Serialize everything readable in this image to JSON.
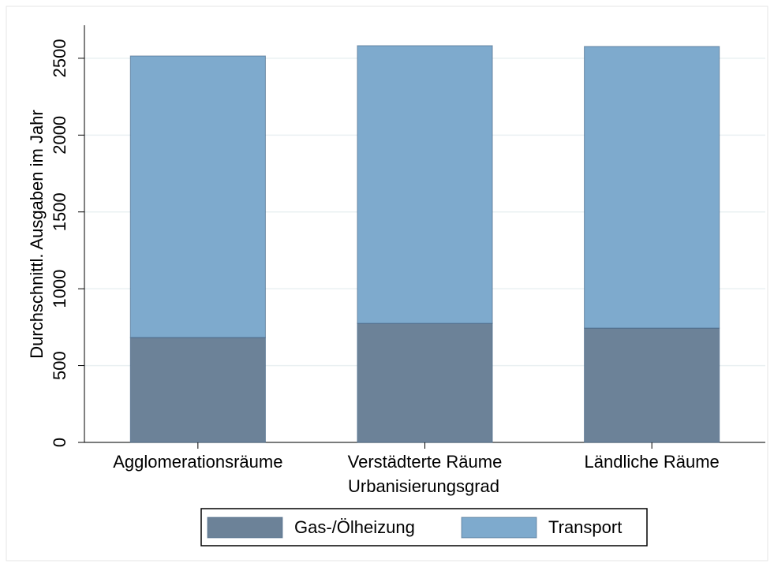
{
  "chart_data": {
    "type": "stacked-bar",
    "categories": [
      "Agglomerationsräume",
      "Verstädterte Räume",
      "Ländliche Räume"
    ],
    "series": [
      {
        "name": "Gas-/Ölheizung",
        "color": "#6c8298",
        "values": [
          683,
          775,
          744
        ]
      },
      {
        "name": "Transport",
        "color": "#7eaacd",
        "values": [
          1832,
          1807,
          1833
        ]
      }
    ],
    "x_label": "Urbanisierungsgrad",
    "y_label": "Durchschnittl. Ausgaben im Jahr",
    "ylim": [
      0,
      2715
    ],
    "yticks": [
      0,
      500,
      1000,
      1500,
      2000,
      2500
    ],
    "grid": true,
    "legend": "bottom"
  }
}
